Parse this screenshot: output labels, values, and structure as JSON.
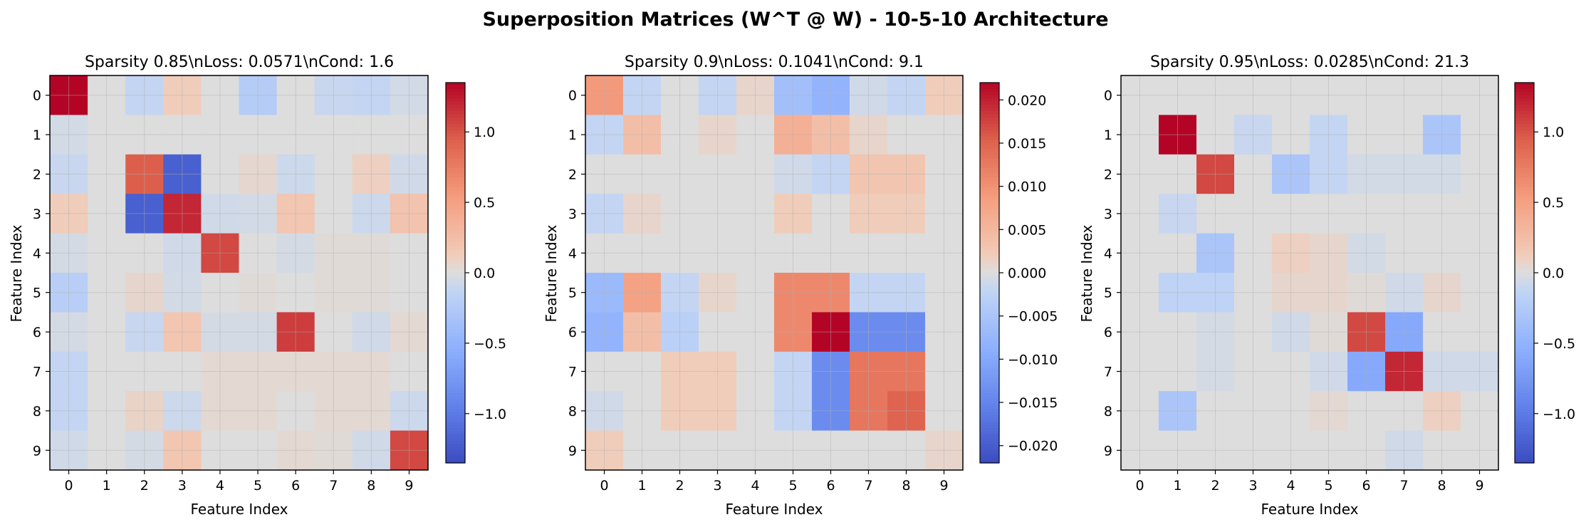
{
  "figure": {
    "title": "Superposition Matrices (W^T @ W) - 10-5-10 Architecture"
  },
  "colors": {
    "colormap": "coolwarm",
    "cmap_low": "#3b4cc0",
    "cmap_mid": "#dddddd",
    "cmap_high": "#b40426",
    "grid": "#b0b0b0",
    "frame": "#000000",
    "background": "#ffffff"
  },
  "chart_data": [
    {
      "type": "heatmap",
      "title": "Sparsity 0.85\\nLoss: 0.0571\\nCond: 1.6",
      "xlabel": "Feature Index",
      "ylabel": "Feature Index",
      "x_ticks": [
        "0",
        "1",
        "2",
        "3",
        "4",
        "5",
        "6",
        "7",
        "8",
        "9"
      ],
      "y_ticks": [
        "0",
        "1",
        "2",
        "3",
        "4",
        "5",
        "6",
        "7",
        "8",
        "9"
      ],
      "grid": true,
      "vmin": -1.35,
      "vmax": 1.35,
      "colorbar_ticks": [
        -1.0,
        -0.5,
        0.0,
        0.5,
        1.0
      ],
      "colorbar_tick_labels": [
        "−1.0",
        "−0.5",
        "0.0",
        "0.5",
        "1.0"
      ],
      "values": [
        [
          1.35,
          0.0,
          -0.12,
          0.12,
          0.0,
          -0.22,
          0.0,
          -0.1,
          -0.12,
          -0.05
        ],
        [
          -0.05,
          0.0,
          0.0,
          0.0,
          0.0,
          0.0,
          0.0,
          0.0,
          0.0,
          0.0
        ],
        [
          -0.1,
          0.0,
          0.95,
          -1.2,
          0.0,
          0.05,
          -0.08,
          0.0,
          0.1,
          -0.06
        ],
        [
          0.12,
          0.0,
          -1.2,
          1.2,
          -0.06,
          -0.05,
          0.18,
          0.0,
          -0.08,
          0.2
        ],
        [
          -0.04,
          0.0,
          0.0,
          -0.06,
          1.05,
          0.0,
          -0.04,
          0.02,
          0.02,
          0.0
        ],
        [
          -0.2,
          0.0,
          0.06,
          -0.05,
          0.0,
          0.02,
          0.0,
          0.02,
          0.02,
          0.0
        ],
        [
          -0.04,
          0.0,
          -0.1,
          0.18,
          -0.04,
          -0.04,
          1.1,
          0.0,
          -0.06,
          0.04
        ],
        [
          -0.12,
          0.0,
          0.0,
          0.0,
          0.04,
          0.04,
          0.04,
          0.04,
          0.04,
          0.0
        ],
        [
          -0.12,
          0.0,
          0.08,
          -0.08,
          0.04,
          0.04,
          0.0,
          0.04,
          0.04,
          -0.08
        ],
        [
          -0.06,
          0.0,
          -0.04,
          0.18,
          0.0,
          0.0,
          0.04,
          0.02,
          -0.06,
          1.05
        ]
      ]
    },
    {
      "type": "heatmap",
      "title": "Sparsity 0.9\\nLoss: 0.1041\\nCond: 9.1",
      "xlabel": "Feature Index",
      "ylabel": "Feature Index",
      "x_ticks": [
        "0",
        "1",
        "2",
        "3",
        "4",
        "5",
        "6",
        "7",
        "8",
        "9"
      ],
      "y_ticks": [
        "0",
        "1",
        "2",
        "3",
        "4",
        "5",
        "6",
        "7",
        "8",
        "9"
      ],
      "grid": true,
      "vmin": -0.022,
      "vmax": 0.022,
      "colorbar_ticks": [
        -0.02,
        -0.015,
        -0.01,
        -0.005,
        0.0,
        0.005,
        0.01,
        0.015,
        0.02
      ],
      "colorbar_tick_labels": [
        "−0.020",
        "−0.015",
        "−0.010",
        "−0.005",
        "0.000",
        "0.005",
        "0.010",
        "0.015",
        "0.020"
      ],
      "values": [
        [
          0.009,
          -0.002,
          0.0,
          -0.002,
          0.001,
          -0.006,
          -0.008,
          -0.001,
          -0.002,
          0.002
        ],
        [
          -0.002,
          0.004,
          0.0,
          0.001,
          0.0,
          0.006,
          0.004,
          0.001,
          0.0,
          0.0
        ],
        [
          0.0,
          0.0,
          0.0,
          0.0,
          0.0,
          -0.001,
          -0.002,
          0.003,
          0.003,
          0.0
        ],
        [
          -0.002,
          0.001,
          0.0,
          0.0,
          0.0,
          0.002,
          0.0,
          0.002,
          0.002,
          0.0
        ],
        [
          0.0,
          0.0,
          0.0,
          0.0,
          0.0,
          0.0,
          0.0,
          0.0,
          0.0,
          0.0
        ],
        [
          -0.007,
          0.008,
          -0.002,
          0.001,
          0.0,
          0.011,
          0.011,
          -0.002,
          -0.002,
          0.0
        ],
        [
          -0.008,
          0.004,
          -0.003,
          0.0,
          0.0,
          0.011,
          0.022,
          -0.014,
          -0.014,
          0.0
        ],
        [
          0.0,
          0.0,
          0.002,
          0.002,
          0.0,
          -0.002,
          -0.014,
          0.013,
          0.013,
          0.0
        ],
        [
          -0.001,
          0.0,
          0.002,
          0.002,
          0.0,
          -0.002,
          -0.014,
          0.013,
          0.015,
          0.0
        ],
        [
          0.002,
          0.0,
          0.0,
          0.0,
          0.0,
          0.0,
          0.0,
          0.0,
          0.0,
          0.001
        ]
      ]
    },
    {
      "type": "heatmap",
      "title": "Sparsity 0.95\\nLoss: 0.0285\\nCond: 21.3",
      "xlabel": "Feature Index",
      "ylabel": "Feature Index",
      "x_ticks": [
        "0",
        "1",
        "2",
        "3",
        "4",
        "5",
        "6",
        "7",
        "8",
        "9"
      ],
      "y_ticks": [
        "0",
        "1",
        "2",
        "3",
        "4",
        "5",
        "6",
        "7",
        "8",
        "9"
      ],
      "grid": true,
      "vmin": -1.35,
      "vmax": 1.35,
      "colorbar_ticks": [
        -1.0,
        -0.5,
        0.0,
        0.5,
        1.0
      ],
      "colorbar_tick_labels": [
        "−1.0",
        "−0.5",
        "0.0",
        "0.5",
        "1.0"
      ],
      "values": [
        [
          0.0,
          0.0,
          0.0,
          0.0,
          0.0,
          0.0,
          0.0,
          0.0,
          0.0,
          0.0
        ],
        [
          0.0,
          1.35,
          0.0,
          -0.1,
          0.0,
          -0.12,
          0.0,
          0.0,
          -0.3,
          0.0
        ],
        [
          0.0,
          0.0,
          1.05,
          0.0,
          -0.3,
          -0.12,
          -0.05,
          -0.05,
          -0.05,
          0.0
        ],
        [
          0.0,
          -0.1,
          0.0,
          0.0,
          0.0,
          0.0,
          0.0,
          0.0,
          0.0,
          0.0
        ],
        [
          0.0,
          0.0,
          -0.3,
          0.0,
          0.1,
          0.06,
          -0.05,
          0.0,
          0.0,
          0.0
        ],
        [
          0.0,
          -0.15,
          -0.15,
          0.0,
          0.06,
          0.06,
          0.02,
          -0.06,
          0.06,
          0.0
        ],
        [
          0.0,
          0.0,
          -0.04,
          0.0,
          -0.06,
          0.02,
          1.05,
          -0.6,
          0.0,
          0.0
        ],
        [
          0.0,
          0.0,
          -0.04,
          0.0,
          0.0,
          -0.06,
          -0.6,
          1.2,
          -0.06,
          -0.06
        ],
        [
          0.0,
          -0.3,
          0.0,
          0.0,
          0.0,
          0.04,
          0.0,
          0.0,
          0.1,
          0.0
        ],
        [
          0.0,
          0.0,
          0.0,
          0.0,
          0.0,
          0.0,
          0.0,
          -0.06,
          0.0,
          0.0
        ]
      ]
    }
  ]
}
